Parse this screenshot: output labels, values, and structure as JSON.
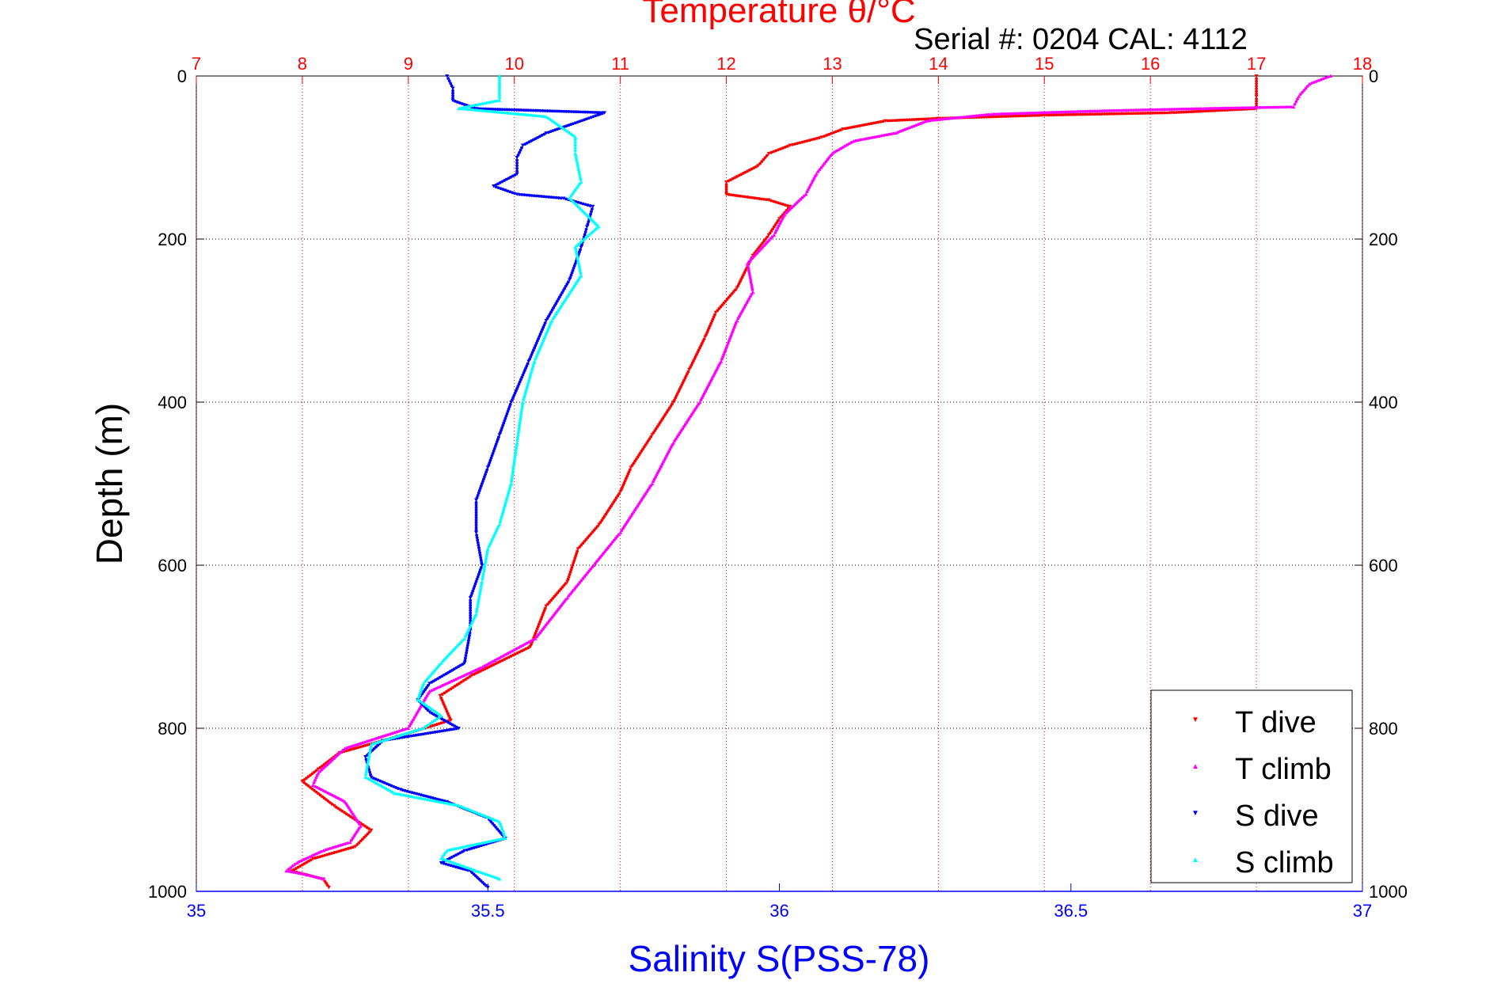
{
  "chart_data": {
    "type": "scatter",
    "title": "Temperature θ/°C",
    "subtitle": "Serial #: 0204  CAL: 4112",
    "ylabel": "Depth (m)",
    "xlabel": "Salinity S(PSS-78)",
    "ylim": [
      0,
      1000
    ],
    "y_inverted": true,
    "temperature_axis": {
      "position": "top",
      "range": [
        7,
        18
      ],
      "ticks": [
        7,
        8,
        9,
        10,
        11,
        12,
        13,
        14,
        15,
        16,
        17,
        18
      ],
      "color": "#ff0000"
    },
    "salinity_axis": {
      "position": "bottom",
      "range": [
        35,
        37
      ],
      "ticks": [
        "35",
        "35.5",
        "36",
        "36.5",
        "37"
      ],
      "color": "#0000ff"
    },
    "depth_ticks": [
      0,
      200,
      400,
      600,
      800,
      1000
    ],
    "grid": true,
    "legend_position": "bottom-right",
    "series": [
      {
        "name": "T dive",
        "axis": "temperature",
        "color": "#ff0000",
        "marker": "triangle-down",
        "points": [
          [
            17.0,
            0
          ],
          [
            17.0,
            25
          ],
          [
            17.0,
            40
          ],
          [
            16.2,
            45
          ],
          [
            15.0,
            48
          ],
          [
            14.0,
            52
          ],
          [
            13.5,
            55
          ],
          [
            13.1,
            65
          ],
          [
            12.9,
            75
          ],
          [
            12.6,
            85
          ],
          [
            12.4,
            95
          ],
          [
            12.3,
            110
          ],
          [
            12.0,
            130
          ],
          [
            12.0,
            145
          ],
          [
            12.4,
            152
          ],
          [
            12.6,
            160
          ],
          [
            12.5,
            175
          ],
          [
            12.4,
            195
          ],
          [
            12.25,
            220
          ],
          [
            12.1,
            260
          ],
          [
            11.9,
            290
          ],
          [
            11.8,
            320
          ],
          [
            11.65,
            360
          ],
          [
            11.5,
            400
          ],
          [
            11.3,
            440
          ],
          [
            11.1,
            480
          ],
          [
            11.0,
            510
          ],
          [
            10.8,
            550
          ],
          [
            10.6,
            580
          ],
          [
            10.5,
            620
          ],
          [
            10.3,
            650
          ],
          [
            10.15,
            700
          ],
          [
            9.6,
            735
          ],
          [
            9.3,
            760
          ],
          [
            9.4,
            790
          ],
          [
            8.9,
            810
          ],
          [
            8.35,
            830
          ],
          [
            8.15,
            850
          ],
          [
            8.0,
            865
          ],
          [
            8.3,
            895
          ],
          [
            8.65,
            925
          ],
          [
            8.5,
            945
          ],
          [
            8.1,
            960
          ],
          [
            7.9,
            975
          ],
          [
            8.2,
            985
          ],
          [
            8.25,
            995
          ]
        ]
      },
      {
        "name": "T climb",
        "axis": "temperature",
        "color": "#ff00ff",
        "marker": "triangle-up",
        "points": [
          [
            17.7,
            0
          ],
          [
            17.5,
            10
          ],
          [
            17.4,
            25
          ],
          [
            17.35,
            38
          ],
          [
            16.5,
            40
          ],
          [
            15.5,
            43
          ],
          [
            14.5,
            47
          ],
          [
            13.9,
            55
          ],
          [
            13.6,
            70
          ],
          [
            13.2,
            80
          ],
          [
            13.0,
            95
          ],
          [
            12.85,
            120
          ],
          [
            12.75,
            145
          ],
          [
            12.55,
            170
          ],
          [
            12.45,
            195
          ],
          [
            12.2,
            230
          ],
          [
            12.25,
            265
          ],
          [
            12.1,
            300
          ],
          [
            11.95,
            350
          ],
          [
            11.75,
            400
          ],
          [
            11.5,
            450
          ],
          [
            11.3,
            500
          ],
          [
            11.0,
            560
          ],
          [
            10.75,
            600
          ],
          [
            10.5,
            640
          ],
          [
            10.2,
            690
          ],
          [
            9.7,
            725
          ],
          [
            9.2,
            755
          ],
          [
            9.0,
            800
          ],
          [
            8.4,
            825
          ],
          [
            8.15,
            855
          ],
          [
            8.1,
            870
          ],
          [
            8.4,
            890
          ],
          [
            8.55,
            920
          ],
          [
            8.45,
            940
          ],
          [
            8.2,
            950
          ],
          [
            7.95,
            965
          ],
          [
            7.85,
            975
          ],
          [
            8.05,
            980
          ],
          [
            8.2,
            985
          ]
        ]
      },
      {
        "name": "S dive",
        "axis": "salinity",
        "color": "#0000ff",
        "marker": "triangle-down",
        "points": [
          [
            35.43,
            0
          ],
          [
            35.44,
            15
          ],
          [
            35.44,
            30
          ],
          [
            35.48,
            40
          ],
          [
            35.7,
            45
          ],
          [
            35.6,
            70
          ],
          [
            35.56,
            85
          ],
          [
            35.55,
            100
          ],
          [
            35.55,
            120
          ],
          [
            35.51,
            135
          ],
          [
            35.55,
            145
          ],
          [
            35.63,
            150
          ],
          [
            35.68,
            160
          ],
          [
            35.67,
            185
          ],
          [
            35.66,
            210
          ],
          [
            35.64,
            250
          ],
          [
            35.6,
            300
          ],
          [
            35.57,
            350
          ],
          [
            35.54,
            400
          ],
          [
            35.52,
            440
          ],
          [
            35.5,
            480
          ],
          [
            35.48,
            520
          ],
          [
            35.48,
            560
          ],
          [
            35.49,
            600
          ],
          [
            35.47,
            640
          ],
          [
            35.47,
            680
          ],
          [
            35.46,
            720
          ],
          [
            35.4,
            745
          ],
          [
            35.38,
            765
          ],
          [
            35.4,
            780
          ],
          [
            35.45,
            800
          ],
          [
            35.32,
            815
          ],
          [
            35.29,
            835
          ],
          [
            35.3,
            860
          ],
          [
            35.35,
            875
          ],
          [
            35.43,
            890
          ],
          [
            35.5,
            910
          ],
          [
            35.53,
            935
          ],
          [
            35.46,
            950
          ],
          [
            35.42,
            965
          ],
          [
            35.47,
            975
          ],
          [
            35.5,
            995
          ]
        ]
      },
      {
        "name": "S climb",
        "axis": "salinity",
        "color": "#00ffff",
        "marker": "triangle-up",
        "points": [
          [
            35.52,
            0
          ],
          [
            35.52,
            30
          ],
          [
            35.45,
            40
          ],
          [
            35.6,
            50
          ],
          [
            35.65,
            75
          ],
          [
            35.65,
            95
          ],
          [
            35.66,
            130
          ],
          [
            35.64,
            150
          ],
          [
            35.69,
            185
          ],
          [
            35.65,
            210
          ],
          [
            35.66,
            245
          ],
          [
            35.61,
            300
          ],
          [
            35.58,
            350
          ],
          [
            35.56,
            400
          ],
          [
            35.55,
            450
          ],
          [
            35.54,
            500
          ],
          [
            35.52,
            550
          ],
          [
            35.5,
            580
          ],
          [
            35.49,
            620
          ],
          [
            35.48,
            660
          ],
          [
            35.46,
            690
          ],
          [
            35.42,
            720
          ],
          [
            35.39,
            745
          ],
          [
            35.38,
            765
          ],
          [
            35.42,
            785
          ],
          [
            35.39,
            800
          ],
          [
            35.3,
            820
          ],
          [
            35.29,
            860
          ],
          [
            35.34,
            880
          ],
          [
            35.45,
            895
          ],
          [
            35.52,
            915
          ],
          [
            35.53,
            935
          ],
          [
            35.43,
            950
          ],
          [
            35.42,
            960
          ],
          [
            35.48,
            975
          ],
          [
            35.52,
            985
          ]
        ]
      }
    ]
  }
}
